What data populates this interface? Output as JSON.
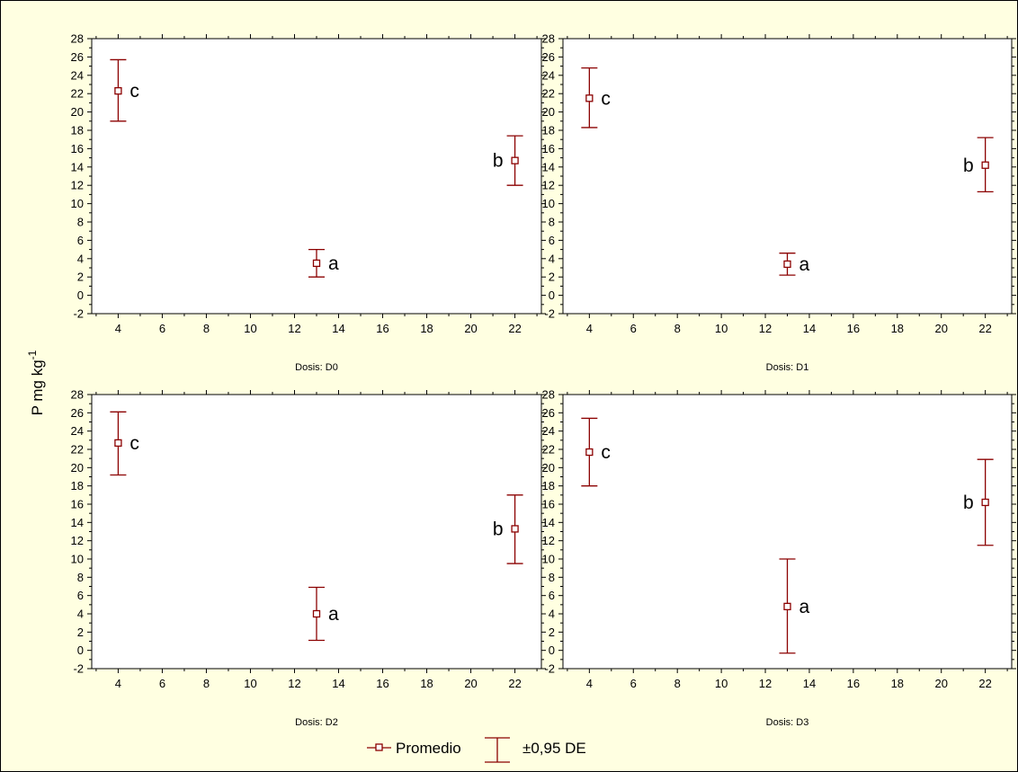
{
  "chart_data": {
    "type": "scatter",
    "ylabel": "P mg kg",
    "ylabel_sup": "-1",
    "x_ticks": [
      4,
      6,
      8,
      10,
      12,
      14,
      16,
      18,
      20,
      22
    ],
    "y_ticks": [
      -2,
      0,
      2,
      4,
      6,
      8,
      10,
      12,
      14,
      16,
      18,
      20,
      22,
      24,
      26,
      28
    ],
    "xlim": [
      2.8,
      23.2
    ],
    "ylim": [
      -2,
      28
    ],
    "legend": {
      "mean_label": "Promedio",
      "range_label": "±0,95 DE",
      "placement": "bottom-center"
    },
    "color": "#8b0000",
    "panels": [
      {
        "subtitle": "Dosis: D0",
        "points": [
          {
            "x": 4,
            "y": 22.3,
            "lo": 19.0,
            "hi": 25.7,
            "letter": "c",
            "side": "right"
          },
          {
            "x": 13,
            "y": 3.5,
            "lo": 2.0,
            "hi": 5.0,
            "letter": "a",
            "side": "right"
          },
          {
            "x": 22,
            "y": 14.7,
            "lo": 12.0,
            "hi": 17.4,
            "letter": "b",
            "side": "left"
          }
        ]
      },
      {
        "subtitle": "Dosis: D1",
        "points": [
          {
            "x": 4,
            "y": 21.5,
            "lo": 18.3,
            "hi": 24.8,
            "letter": "c",
            "side": "right"
          },
          {
            "x": 13,
            "y": 3.4,
            "lo": 2.2,
            "hi": 4.6,
            "letter": "a",
            "side": "right"
          },
          {
            "x": 22,
            "y": 14.2,
            "lo": 11.3,
            "hi": 17.2,
            "letter": "b",
            "side": "left"
          }
        ]
      },
      {
        "subtitle": "Dosis: D2",
        "points": [
          {
            "x": 4,
            "y": 22.7,
            "lo": 19.2,
            "hi": 26.1,
            "letter": "c",
            "side": "right"
          },
          {
            "x": 13,
            "y": 4.0,
            "lo": 1.1,
            "hi": 6.9,
            "letter": "a",
            "side": "right"
          },
          {
            "x": 22,
            "y": 13.3,
            "lo": 9.5,
            "hi": 17.0,
            "letter": "b",
            "side": "left"
          }
        ]
      },
      {
        "subtitle": "Dosis: D3",
        "points": [
          {
            "x": 4,
            "y": 21.7,
            "lo": 18.0,
            "hi": 25.4,
            "letter": "c",
            "side": "right"
          },
          {
            "x": 13,
            "y": 4.8,
            "lo": -0.3,
            "hi": 10.0,
            "letter": "a",
            "side": "right"
          },
          {
            "x": 22,
            "y": 16.2,
            "lo": 11.5,
            "hi": 20.9,
            "letter": "b",
            "side": "left"
          }
        ]
      }
    ]
  }
}
